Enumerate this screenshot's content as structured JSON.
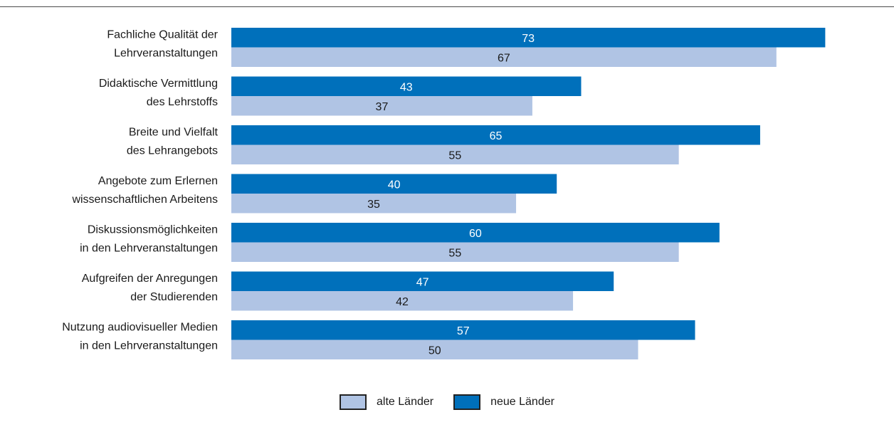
{
  "chart_data": {
    "type": "bar",
    "orientation": "horizontal",
    "categories": [
      [
        "Fachliche Qualität der",
        "Lehrveranstaltungen"
      ],
      [
        "Didaktische Vermittlung",
        "des Lehrstoffs"
      ],
      [
        "Breite und Vielfalt",
        "des Lehrangebots"
      ],
      [
        "Angebote zum Erlernen",
        "wissenschaftlichen Arbeitens"
      ],
      [
        "Diskussionsmöglichkeiten",
        "in den Lehrveranstaltungen"
      ],
      [
        "Aufgreifen der Anregungen",
        "der Studierenden"
      ],
      [
        "Nutzung audiovisueller Medien",
        "in den Lehrveranstaltungen"
      ]
    ],
    "series": [
      {
        "name": "neue Länder",
        "color": "#0070bb",
        "label_color": "#ffffff",
        "values": [
          73,
          43,
          65,
          40,
          60,
          47,
          57
        ]
      },
      {
        "name": "alte Länder",
        "color": "#b0c4e4",
        "label_color": "#1a1a1a",
        "values": [
          67,
          37,
          55,
          35,
          55,
          42,
          50
        ]
      }
    ],
    "xlim": [
      0,
      80
    ],
    "grid": false,
    "legend_position": "bottom-center"
  },
  "legend": {
    "items": [
      {
        "label": "alte Länder",
        "color": "#b0c4e4"
      },
      {
        "label": "neue Länder",
        "color": "#0070bb"
      }
    ]
  }
}
